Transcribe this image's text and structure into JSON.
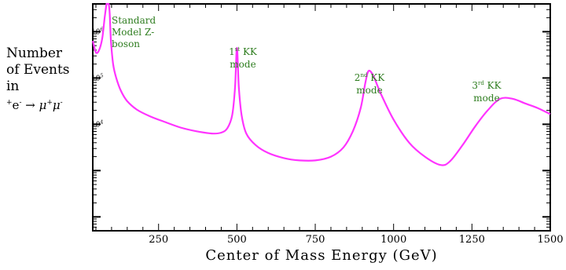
{
  "chart_data": {
    "type": "line",
    "xlabel": "Center of Mass Energy (GeV)",
    "ylabel_lines": [
      "Number",
      "of Events",
      "in"
    ],
    "process": {
      "pre_charge": "+",
      "electron": "e",
      "electron_charge": "-",
      "arrow": "→",
      "mu": "μ",
      "mu_plus": "+",
      "mu_minus": "-"
    },
    "xlim": [
      40,
      1500
    ],
    "xticks": [
      {
        "value": 250,
        "label": "250"
      },
      {
        "value": 500,
        "label": "500"
      },
      {
        "value": 750,
        "label": "750"
      },
      {
        "value": 1000,
        "label": "1000"
      },
      {
        "value": 1250,
        "label": "1250"
      },
      {
        "value": 1500,
        "label": "1500"
      }
    ],
    "y_scale": "log",
    "ylim_log10": [
      1.7,
      6.6
    ],
    "yticks": [
      {
        "log10": 6,
        "label": "10",
        "exp": "6"
      },
      {
        "log10": 5,
        "label": "10",
        "exp": "5"
      },
      {
        "log10": 4,
        "label": "10",
        "exp": "4"
      }
    ],
    "series": [
      {
        "color": "#ff33ff",
        "x": [
          40,
          50,
          60,
          70,
          78,
          84,
          88,
          91,
          94,
          98,
          105,
          115,
          130,
          150,
          180,
          220,
          270,
          320,
          370,
          420,
          450,
          470,
          485,
          494,
          500,
          506,
          515,
          530,
          560,
          600,
          650,
          700,
          750,
          800,
          840,
          870,
          895,
          910,
          920,
          935,
          960,
          1000,
          1050,
          1100,
          1150,
          1180,
          1220,
          1260,
          1300,
          1340,
          1380,
          1420,
          1460,
          1500
        ],
        "log10_y": [
          5.8,
          5.55,
          5.6,
          5.85,
          6.3,
          6.7,
          6.9,
          6.95,
          6.4,
          5.8,
          5.3,
          5.0,
          4.72,
          4.5,
          4.32,
          4.18,
          4.05,
          3.93,
          3.85,
          3.8,
          3.82,
          3.92,
          4.2,
          4.8,
          5.65,
          4.8,
          4.2,
          3.8,
          3.55,
          3.38,
          3.27,
          3.22,
          3.22,
          3.3,
          3.5,
          3.85,
          4.35,
          4.9,
          5.15,
          5.05,
          4.65,
          4.1,
          3.6,
          3.3,
          3.12,
          3.2,
          3.55,
          3.95,
          4.3,
          4.55,
          4.55,
          4.45,
          4.35,
          4.22
        ]
      }
    ],
    "annotations": [
      {
        "lines": [
          "Standard",
          "Model Z-",
          "boson"
        ],
        "color": "#2e7d1f"
      },
      {
        "sup_lead": "1",
        "sup": "st",
        "text": " KK",
        "line2": "mode",
        "color": "#2e7d1f"
      },
      {
        "sup_lead": "2",
        "sup": "nd",
        "text": " KK",
        "line2": "mode",
        "color": "#2e7d1f"
      },
      {
        "sup_lead": "3",
        "sup": "rd",
        "text": " KK",
        "line2": "mode",
        "color": "#2e7d1f"
      }
    ],
    "grid": false,
    "legend": "none"
  }
}
